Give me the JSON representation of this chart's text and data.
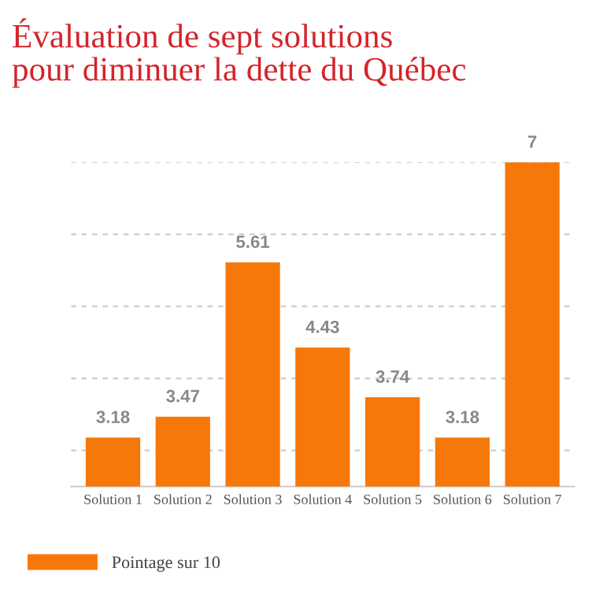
{
  "chart_data": {
    "type": "bar",
    "title": "Évaluation de sept solutions\npour diminuer la dette du Québec",
    "categories": [
      "Solution 1",
      "Solution 2",
      "Solution 3",
      "Solution 4",
      "Solution 5",
      "Solution 6",
      "Solution 7"
    ],
    "series": [
      {
        "name": "Pointage sur 10",
        "color": "#f7780a",
        "values": [
          3.18,
          3.47,
          5.61,
          4.43,
          3.74,
          3.18,
          7
        ]
      }
    ],
    "ylim": [
      2.5,
      7
    ],
    "yticks": [
      {
        "value": 3,
        "label": null
      },
      {
        "value": 4,
        "label": null
      },
      {
        "value": 5,
        "label": null
      },
      {
        "value": 6,
        "label": null
      },
      {
        "value": 7,
        "label": null
      }
    ],
    "tick_labels": "x",
    "grid": "y",
    "legend": "bottom left",
    "data_labels": true
  }
}
